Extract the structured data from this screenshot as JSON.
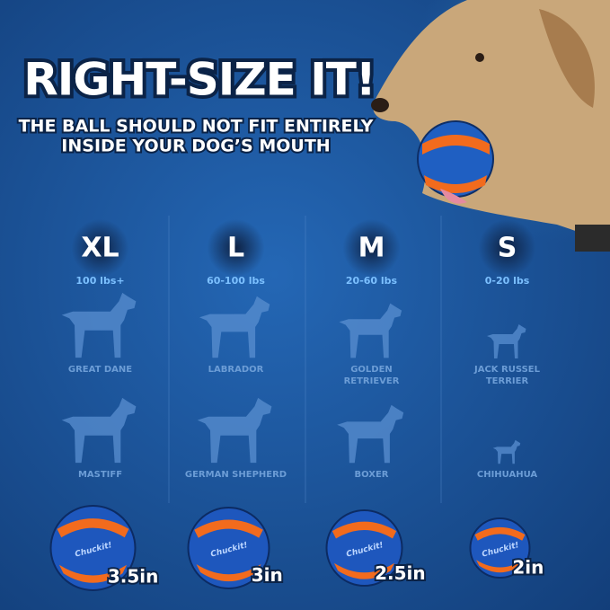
{
  "header": {
    "title": "RIGHT-SIZE IT!",
    "subtitle": [
      "THE BALL SHOULD NOT FIT ENTIRELY",
      "INSIDE YOUR DOG’S MOUTH"
    ]
  },
  "brand": "Chuckit!",
  "columns": [
    {
      "size": "XL",
      "weight": "100 lbs+",
      "dogs": [
        [
          "GREAT DANE"
        ],
        [
          "MASTIFF"
        ]
      ],
      "ball": "3.5in"
    },
    {
      "size": "L",
      "weight": "60-100 lbs",
      "dogs": [
        [
          "LABRADOR"
        ],
        [
          "GERMAN SHEPHERD"
        ]
      ],
      "ball": "3in"
    },
    {
      "size": "M",
      "weight": "20-60 lbs",
      "dogs": [
        [
          "GOLDEN",
          "RETRIEVER"
        ],
        [
          "BOXER"
        ]
      ],
      "ball": "2.5in"
    },
    {
      "size": "S",
      "weight": "0-20 lbs",
      "dogs": [
        [
          "JACK RUSSEL",
          "TERRIER"
        ],
        [
          "CHIHUAHUA"
        ]
      ],
      "ball": "2in"
    }
  ]
}
